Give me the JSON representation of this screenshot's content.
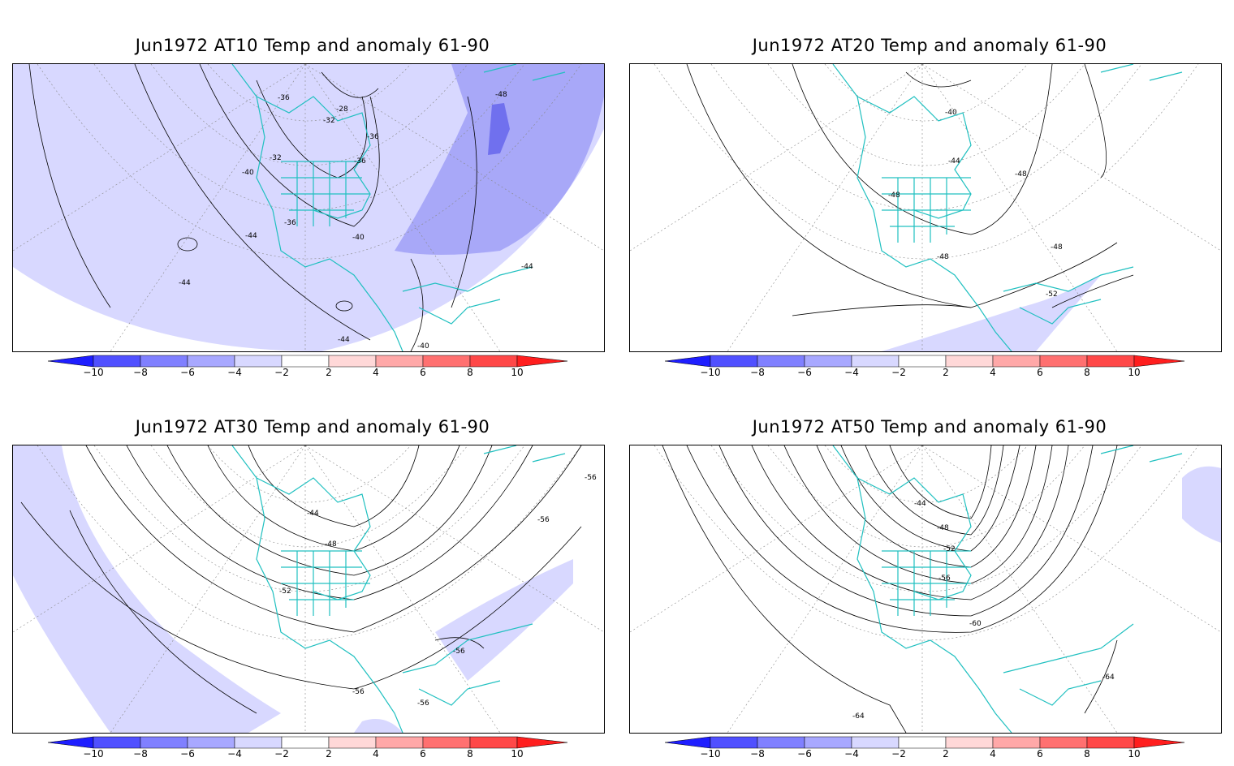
{
  "panels": [
    {
      "title": "Jun1972 AT10 Temp and anomaly 61-90",
      "contour_labels": [
        "-28",
        "-32",
        "-32",
        "-36",
        "-36",
        "-36",
        "-40",
        "-40",
        "-40",
        "-44",
        "-44",
        "-44",
        "-44",
        "-48",
        "-36"
      ]
    },
    {
      "title": "Jun1972 AT20 Temp and anomaly 61-90",
      "contour_labels": [
        "-40",
        "-44",
        "-48",
        "-48",
        "-48",
        "-48",
        "-52"
      ]
    },
    {
      "title": "Jun1972 AT30 Temp and anomaly 61-90",
      "contour_labels": [
        "-44",
        "-48",
        "-52",
        "-56",
        "-56",
        "-56",
        "-56",
        "-56"
      ]
    },
    {
      "title": "Jun1972 AT50 Temp and anomaly 61-90",
      "contour_labels": [
        "-44",
        "-48",
        "-52",
        "-56",
        "-60",
        "-64",
        "-64"
      ]
    }
  ],
  "colorbar": {
    "labels": [
      "−10",
      "−8",
      "−6",
      "−4",
      "−2",
      "2",
      "4",
      "6",
      "8",
      "10"
    ],
    "colors": [
      "#1e1eff",
      "#5050ff",
      "#8080ff",
      "#a8a8ff",
      "#d8d8ff",
      "#ffffff",
      "#ffd8d8",
      "#ffa8a8",
      "#ff7070",
      "#ff4848",
      "#ff1e1e"
    ]
  },
  "map_colors": {
    "coastline": "#20c0c0",
    "anomaly_light": "#d8d8ff",
    "anomaly_mid": "#a8a8f8",
    "anomaly_dark": "#7070ee",
    "contour": "#000000",
    "grid": "#888888"
  }
}
